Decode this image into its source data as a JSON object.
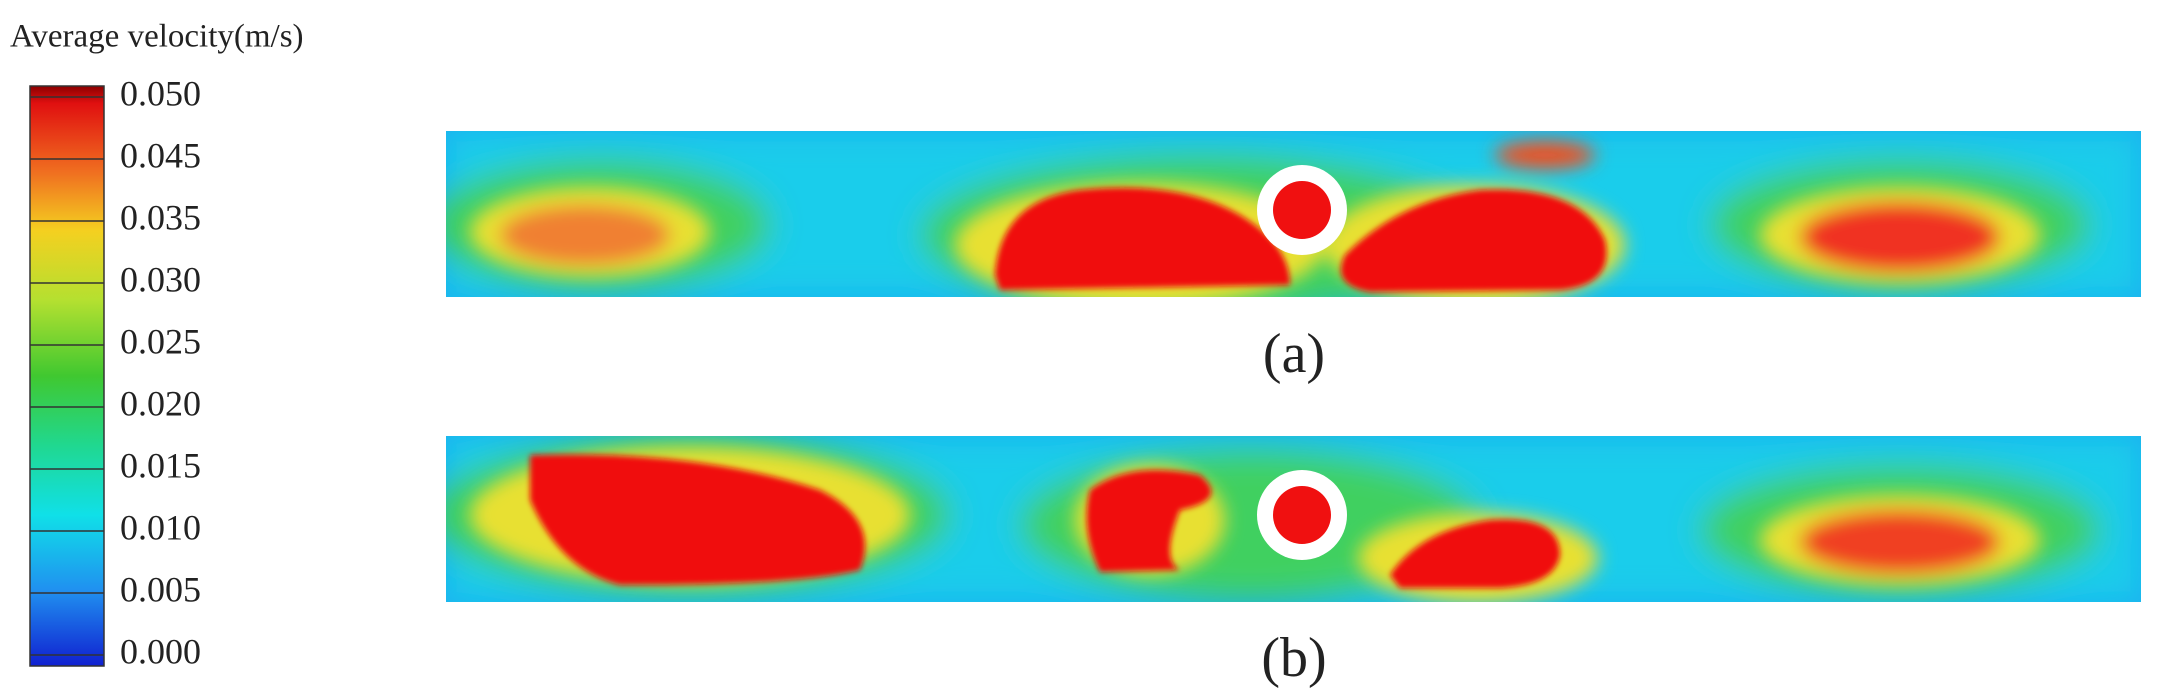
{
  "colorbar": {
    "title": "Average velocity(m/s)",
    "ticks": [
      {
        "value": 0.05,
        "label": "0.050"
      },
      {
        "value": 0.045,
        "label": "0.045"
      },
      {
        "value": 0.035,
        "label": "0.035"
      },
      {
        "value": 0.03,
        "label": "0.030"
      },
      {
        "value": 0.025,
        "label": "0.025"
      },
      {
        "value": 0.02,
        "label": "0.020"
      },
      {
        "value": 0.015,
        "label": "0.015"
      },
      {
        "value": 0.01,
        "label": "0.010"
      },
      {
        "value": 0.005,
        "label": "0.005"
      },
      {
        "value": 0,
        "label": "0.000"
      }
    ]
  },
  "panels": [
    {
      "label": "(a)"
    },
    {
      "label": "(b)"
    }
  ]
}
